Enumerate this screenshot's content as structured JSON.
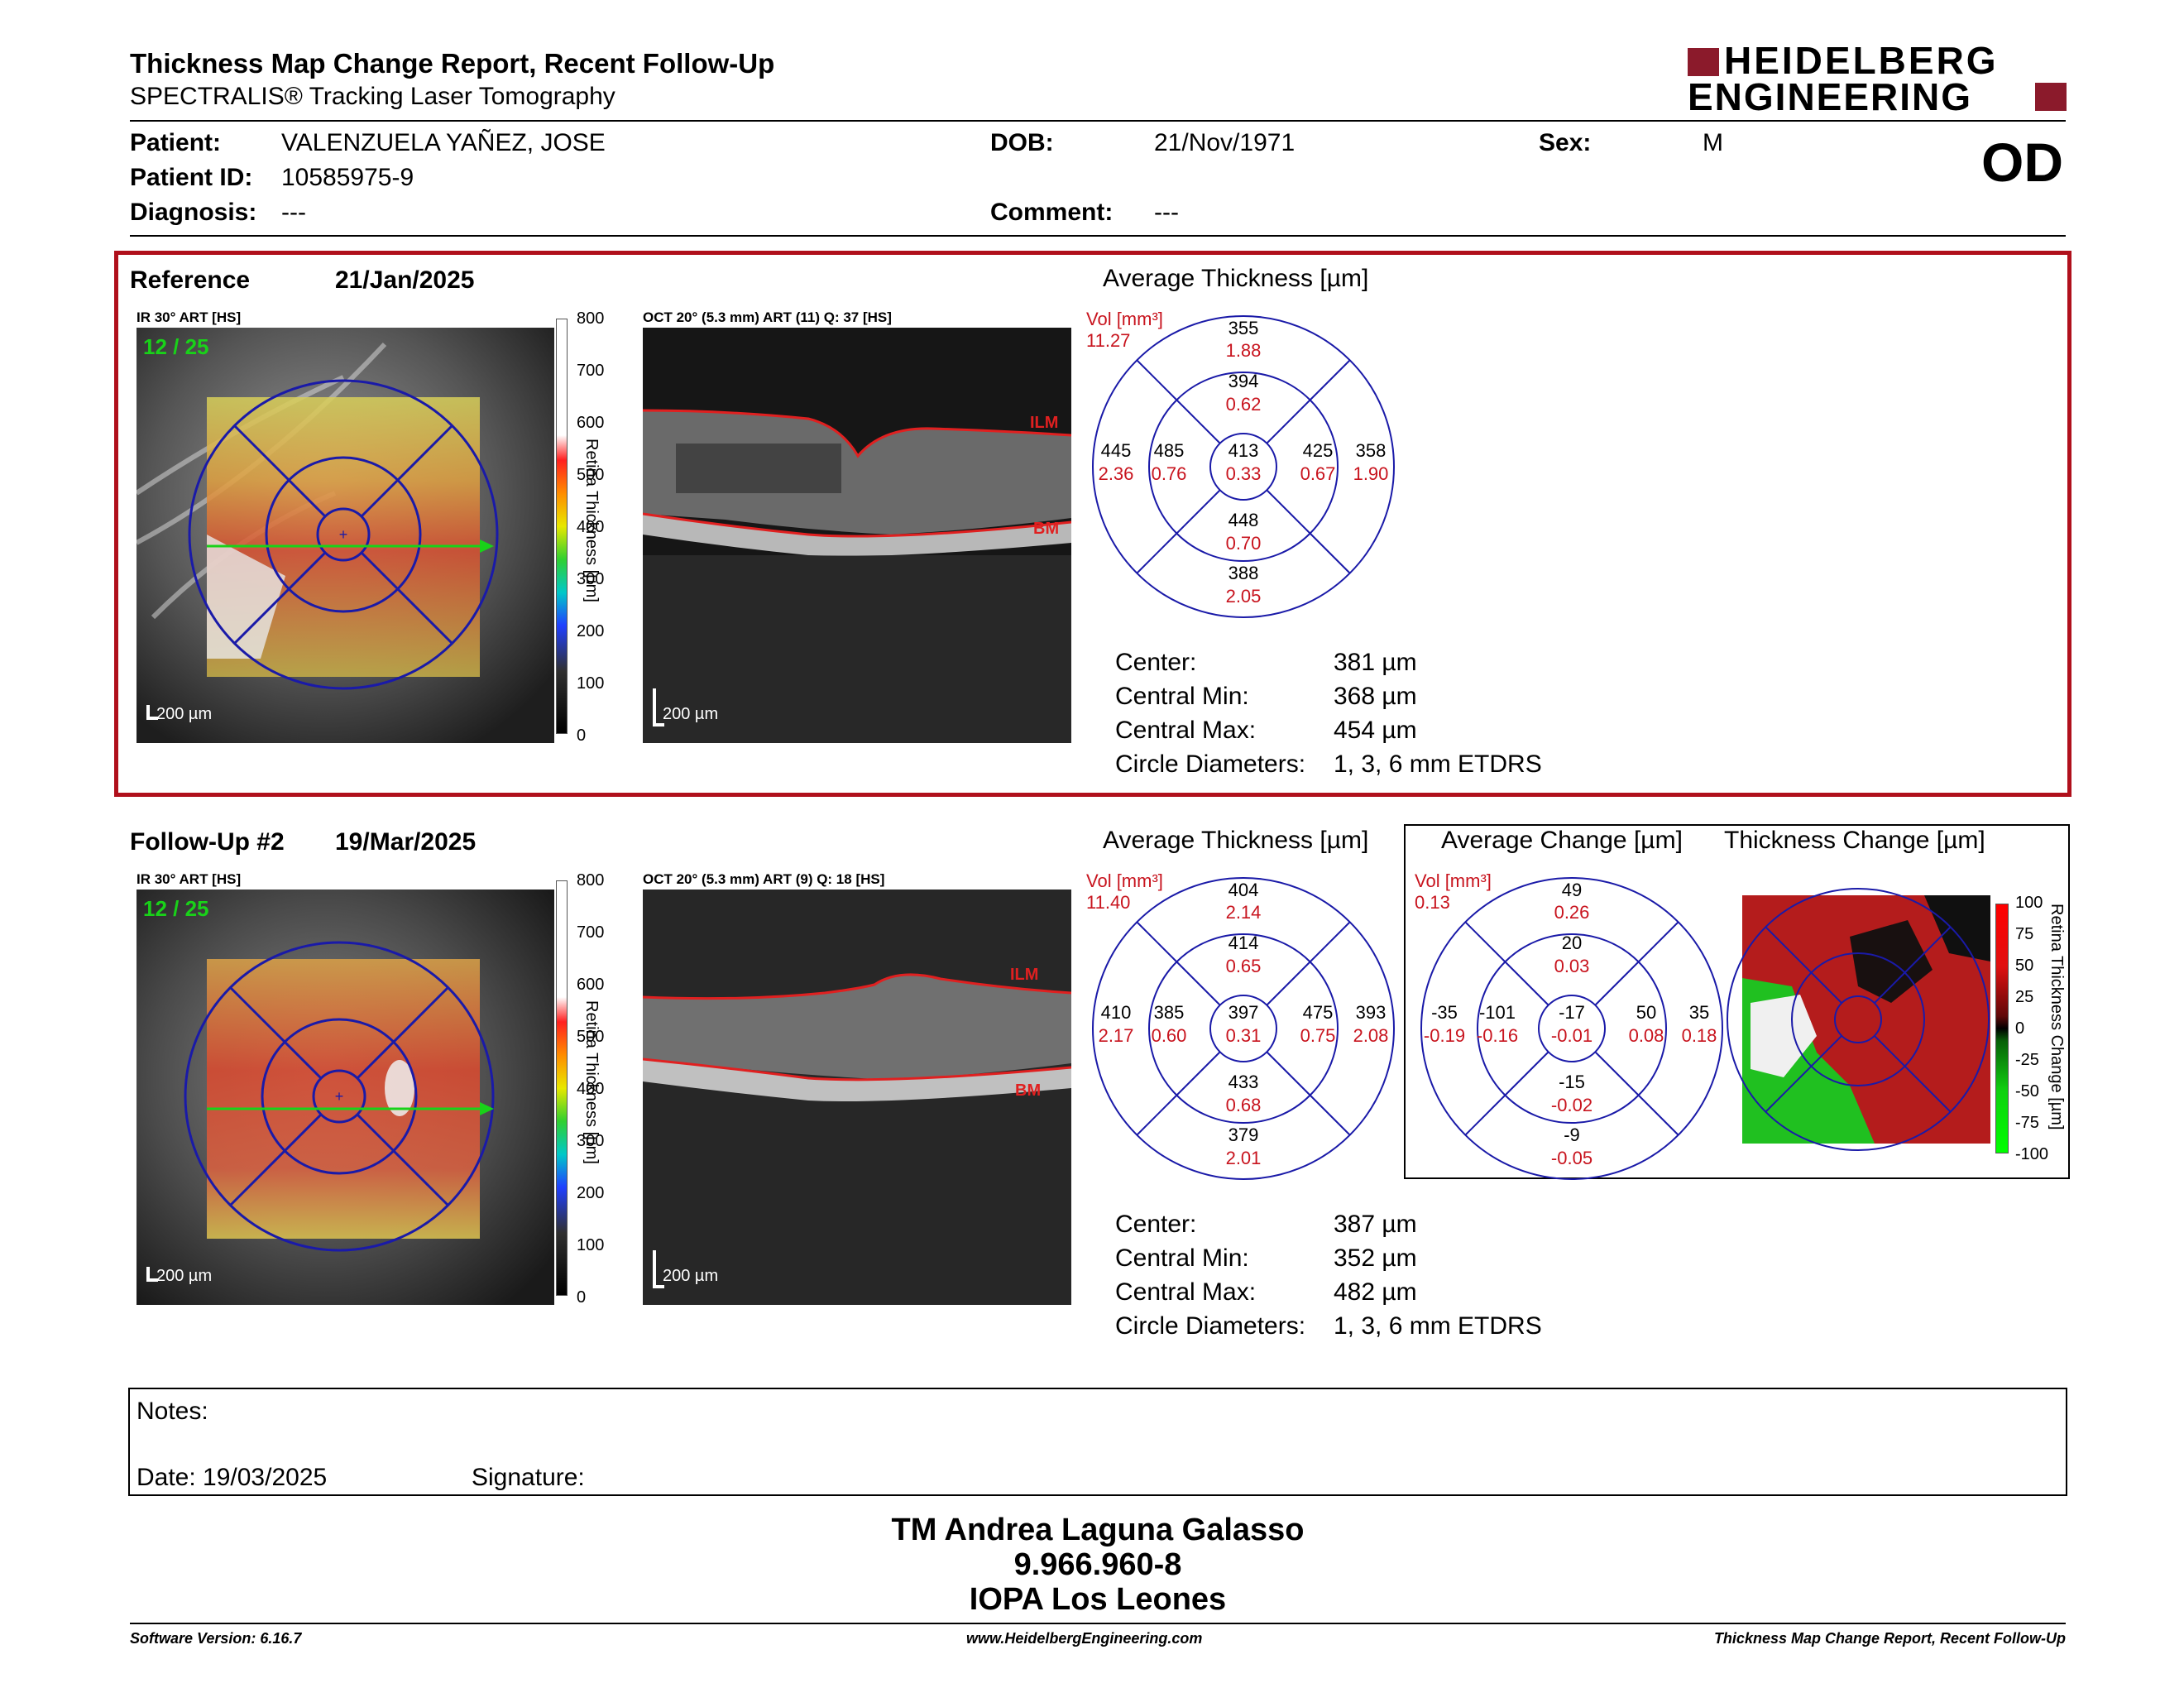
{
  "header": {
    "title": "Thickness Map Change Report, Recent Follow-Up",
    "subtitle": "SPECTRALIS® Tracking Laser Tomography",
    "logo_line1": "HEIDELBERG",
    "logo_line2": "ENGINEERING",
    "eye": "OD"
  },
  "patient": {
    "patient_label": "Patient:",
    "patient_name": "VALENZUELA YAÑEZ, JOSE",
    "id_label": "Patient ID:",
    "id_value": "10585975-9",
    "diagnosis_label": "Diagnosis:",
    "diagnosis_value": "---",
    "dob_label": "DOB:",
    "dob_value": "21/Nov/1971",
    "comment_label": "Comment:",
    "comment_value": "---",
    "sex_label": "Sex:",
    "sex_value": "M"
  },
  "reference": {
    "label": "Reference",
    "date": "21/Jan/2025",
    "ir_caption": "IR 30° ART [HS]",
    "frame": "12 / 25",
    "oct_caption": "OCT 20° (5.3 mm) ART (11) Q: 37 [HS]",
    "scale_bar": "200 µm",
    "avg_title": "Average Thickness [µm]",
    "vol_label": "Vol [mm³]",
    "vol_value": "11.27",
    "grid": {
      "center": [
        "413",
        "0.33"
      ],
      "inner_top": [
        "394",
        "0.62"
      ],
      "inner_bottom": [
        "448",
        "0.70"
      ],
      "inner_left": [
        "485",
        "0.76"
      ],
      "inner_right": [
        "425",
        "0.67"
      ],
      "outer_top": [
        "355",
        "1.88"
      ],
      "outer_bottom": [
        "388",
        "2.05"
      ],
      "outer_left": [
        "445",
        "2.36"
      ],
      "outer_right": [
        "358",
        "1.90"
      ]
    },
    "stats": [
      {
        "label": "Center:",
        "value": "381 µm"
      },
      {
        "label": "Central Min:",
        "value": "368 µm"
      },
      {
        "label": "Central Max:",
        "value": "454 µm"
      },
      {
        "label": "Circle Diameters:",
        "value": "1, 3, 6 mm ETDRS"
      }
    ]
  },
  "followup": {
    "label": "Follow-Up #2",
    "date": "19/Mar/2025",
    "ir_caption": "IR 30° ART [HS]",
    "frame": "12 / 25",
    "oct_caption": "OCT 20° (5.3 mm) ART (9) Q: 18 [HS]",
    "scale_bar": "200 µm",
    "avg_title": "Average Thickness [µm]",
    "vol_label": "Vol [mm³]",
    "vol_value": "11.40",
    "grid": {
      "center": [
        "397",
        "0.31"
      ],
      "inner_top": [
        "414",
        "0.65"
      ],
      "inner_bottom": [
        "433",
        "0.68"
      ],
      "inner_left": [
        "385",
        "0.60"
      ],
      "inner_right": [
        "475",
        "0.75"
      ],
      "outer_top": [
        "404",
        "2.14"
      ],
      "outer_bottom": [
        "379",
        "2.01"
      ],
      "outer_left": [
        "410",
        "2.17"
      ],
      "outer_right": [
        "393",
        "2.08"
      ]
    },
    "change_title": "Average Change [µm]",
    "change_vol_label": "Vol [mm³]",
    "change_vol_value": "0.13",
    "change_grid": {
      "center": [
        "-17",
        "-0.01"
      ],
      "inner_top": [
        "20",
        "0.03"
      ],
      "inner_bottom": [
        "-15",
        "-0.02"
      ],
      "inner_left": [
        "-101",
        "-0.16"
      ],
      "inner_right": [
        "50",
        "0.08"
      ],
      "outer_top": [
        "49",
        "0.26"
      ],
      "outer_bottom": [
        "-9",
        "-0.05"
      ],
      "outer_left": [
        "-35",
        "-0.19"
      ],
      "outer_right": [
        "35",
        "0.18"
      ]
    },
    "thickness_change_title": "Thickness Change [µm]",
    "stats": [
      {
        "label": "Center:",
        "value": "387 µm"
      },
      {
        "label": "Central Min:",
        "value": "352 µm"
      },
      {
        "label": "Central Max:",
        "value": "482 µm"
      },
      {
        "label": "Circle Diameters:",
        "value": "1, 3, 6 mm ETDRS"
      }
    ]
  },
  "thickness_scale": {
    "title": "Retina Thickness [µm]",
    "ticks": [
      "800",
      "700",
      "600",
      "500",
      "400",
      "300",
      "200",
      "100",
      "0"
    ]
  },
  "change_scale": {
    "title": "Retina Thickness Change [µm]",
    "ticks": [
      "100",
      "75",
      "50",
      "25",
      "0",
      "-25",
      "-50",
      "-75",
      "-100"
    ]
  },
  "oct_labels": {
    "ilm": "ILM",
    "bm": "BM"
  },
  "notes": {
    "notes_label": "Notes:",
    "date_label": "Date: 19/03/2025",
    "signature_label": "Signature:"
  },
  "signatory": {
    "name": "TM Andrea Laguna Galasso",
    "id": "9.966.960-8",
    "org": "IOPA Los Leones"
  },
  "footer": {
    "version": "Software Version: 6.16.7",
    "website": "www.HeidelbergEngineering.com",
    "report": "Thickness Map Change Report, Recent Follow-Up"
  },
  "colors": {
    "accent_red": "#b0101c",
    "grid_blue": "#1a1aa8",
    "scan_green": "#19d219"
  }
}
